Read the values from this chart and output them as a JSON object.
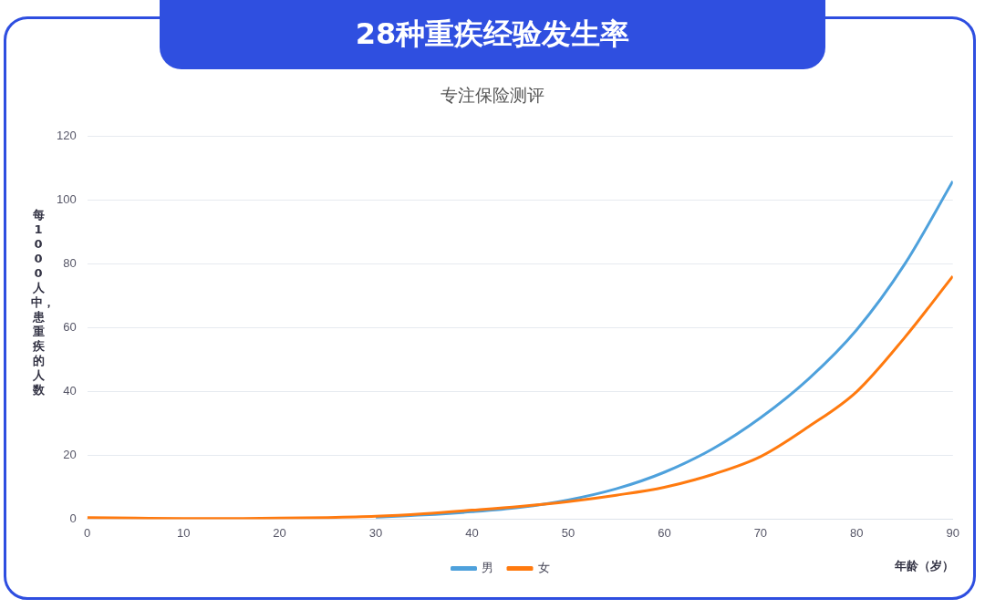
{
  "chart_data": {
    "type": "line",
    "title": "28种重疾经验发生率",
    "subtitle": "专注保险测评",
    "xlabel": "年龄（岁）",
    "ylabel": "每1000人中，患重疾的人数",
    "x": [
      0,
      5,
      10,
      15,
      20,
      25,
      30,
      35,
      40,
      45,
      50,
      55,
      60,
      65,
      70,
      75,
      80,
      85,
      90
    ],
    "series": [
      {
        "name": "男",
        "color": "#4ea1dc",
        "values": [
          null,
          null,
          null,
          null,
          null,
          null,
          0.6,
          1.3,
          2.3,
          3.7,
          6,
          9.5,
          14.7,
          22,
          31.8,
          44,
          59.4,
          80,
          106
        ]
      },
      {
        "name": "女",
        "color": "#ff7a0f",
        "values": [
          0.5,
          0.3,
          0.2,
          0.2,
          0.3,
          0.5,
          0.9,
          1.7,
          2.8,
          4,
          5.5,
          7.5,
          10,
          14,
          19.6,
          29,
          40,
          57,
          76.2
        ]
      }
    ],
    "xlim": [
      0,
      90
    ],
    "xticks": [
      0,
      10,
      20,
      30,
      40,
      50,
      60,
      70,
      80,
      90
    ],
    "ylim": [
      0,
      120
    ],
    "yticks": [
      0,
      20,
      40,
      60,
      80,
      100,
      120
    ],
    "grid": "y",
    "legend": "bottom",
    "marker": "none",
    "line_style": "solid"
  }
}
